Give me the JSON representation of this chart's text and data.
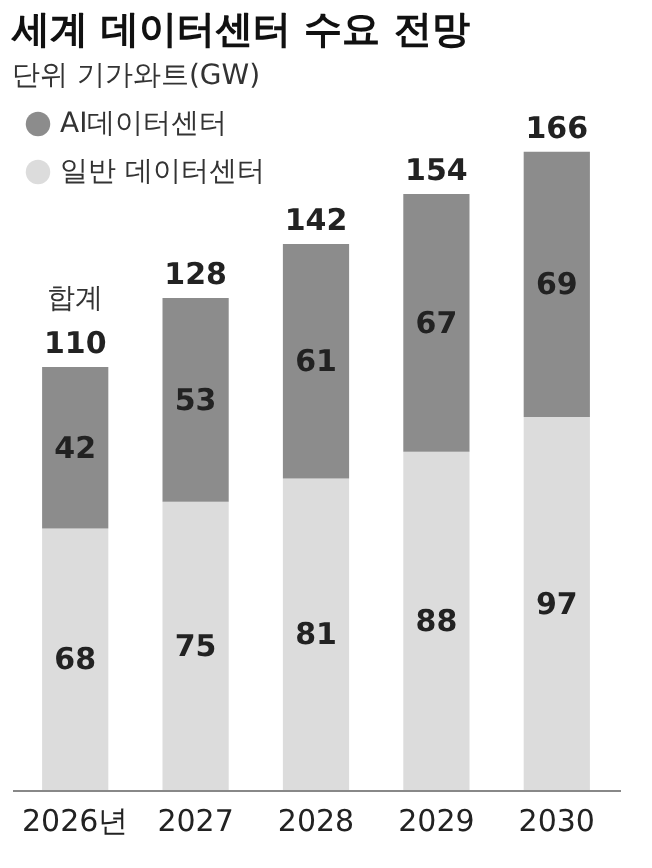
{
  "chart_data": {
    "type": "bar",
    "title": "세계 데이터센터 수요 전망",
    "subtitle": "단위 기가와트(GW)",
    "categories": [
      "2026년",
      "2027",
      "2028",
      "2029",
      "2030"
    ],
    "stacked": true,
    "data_labels": true,
    "legend": "top left",
    "series": [
      {
        "name": "일반 데이터센터",
        "color": "#dcdcdc",
        "values": [
          68,
          75,
          81,
          88,
          97
        ]
      },
      {
        "name": "AI데이터센터",
        "color": "#8c8c8c",
        "values": [
          42,
          53,
          61,
          67,
          69
        ]
      }
    ],
    "totals": [
      "110",
      "128",
      "142",
      "154",
      "166"
    ],
    "annotations": [
      "합계"
    ]
  }
}
